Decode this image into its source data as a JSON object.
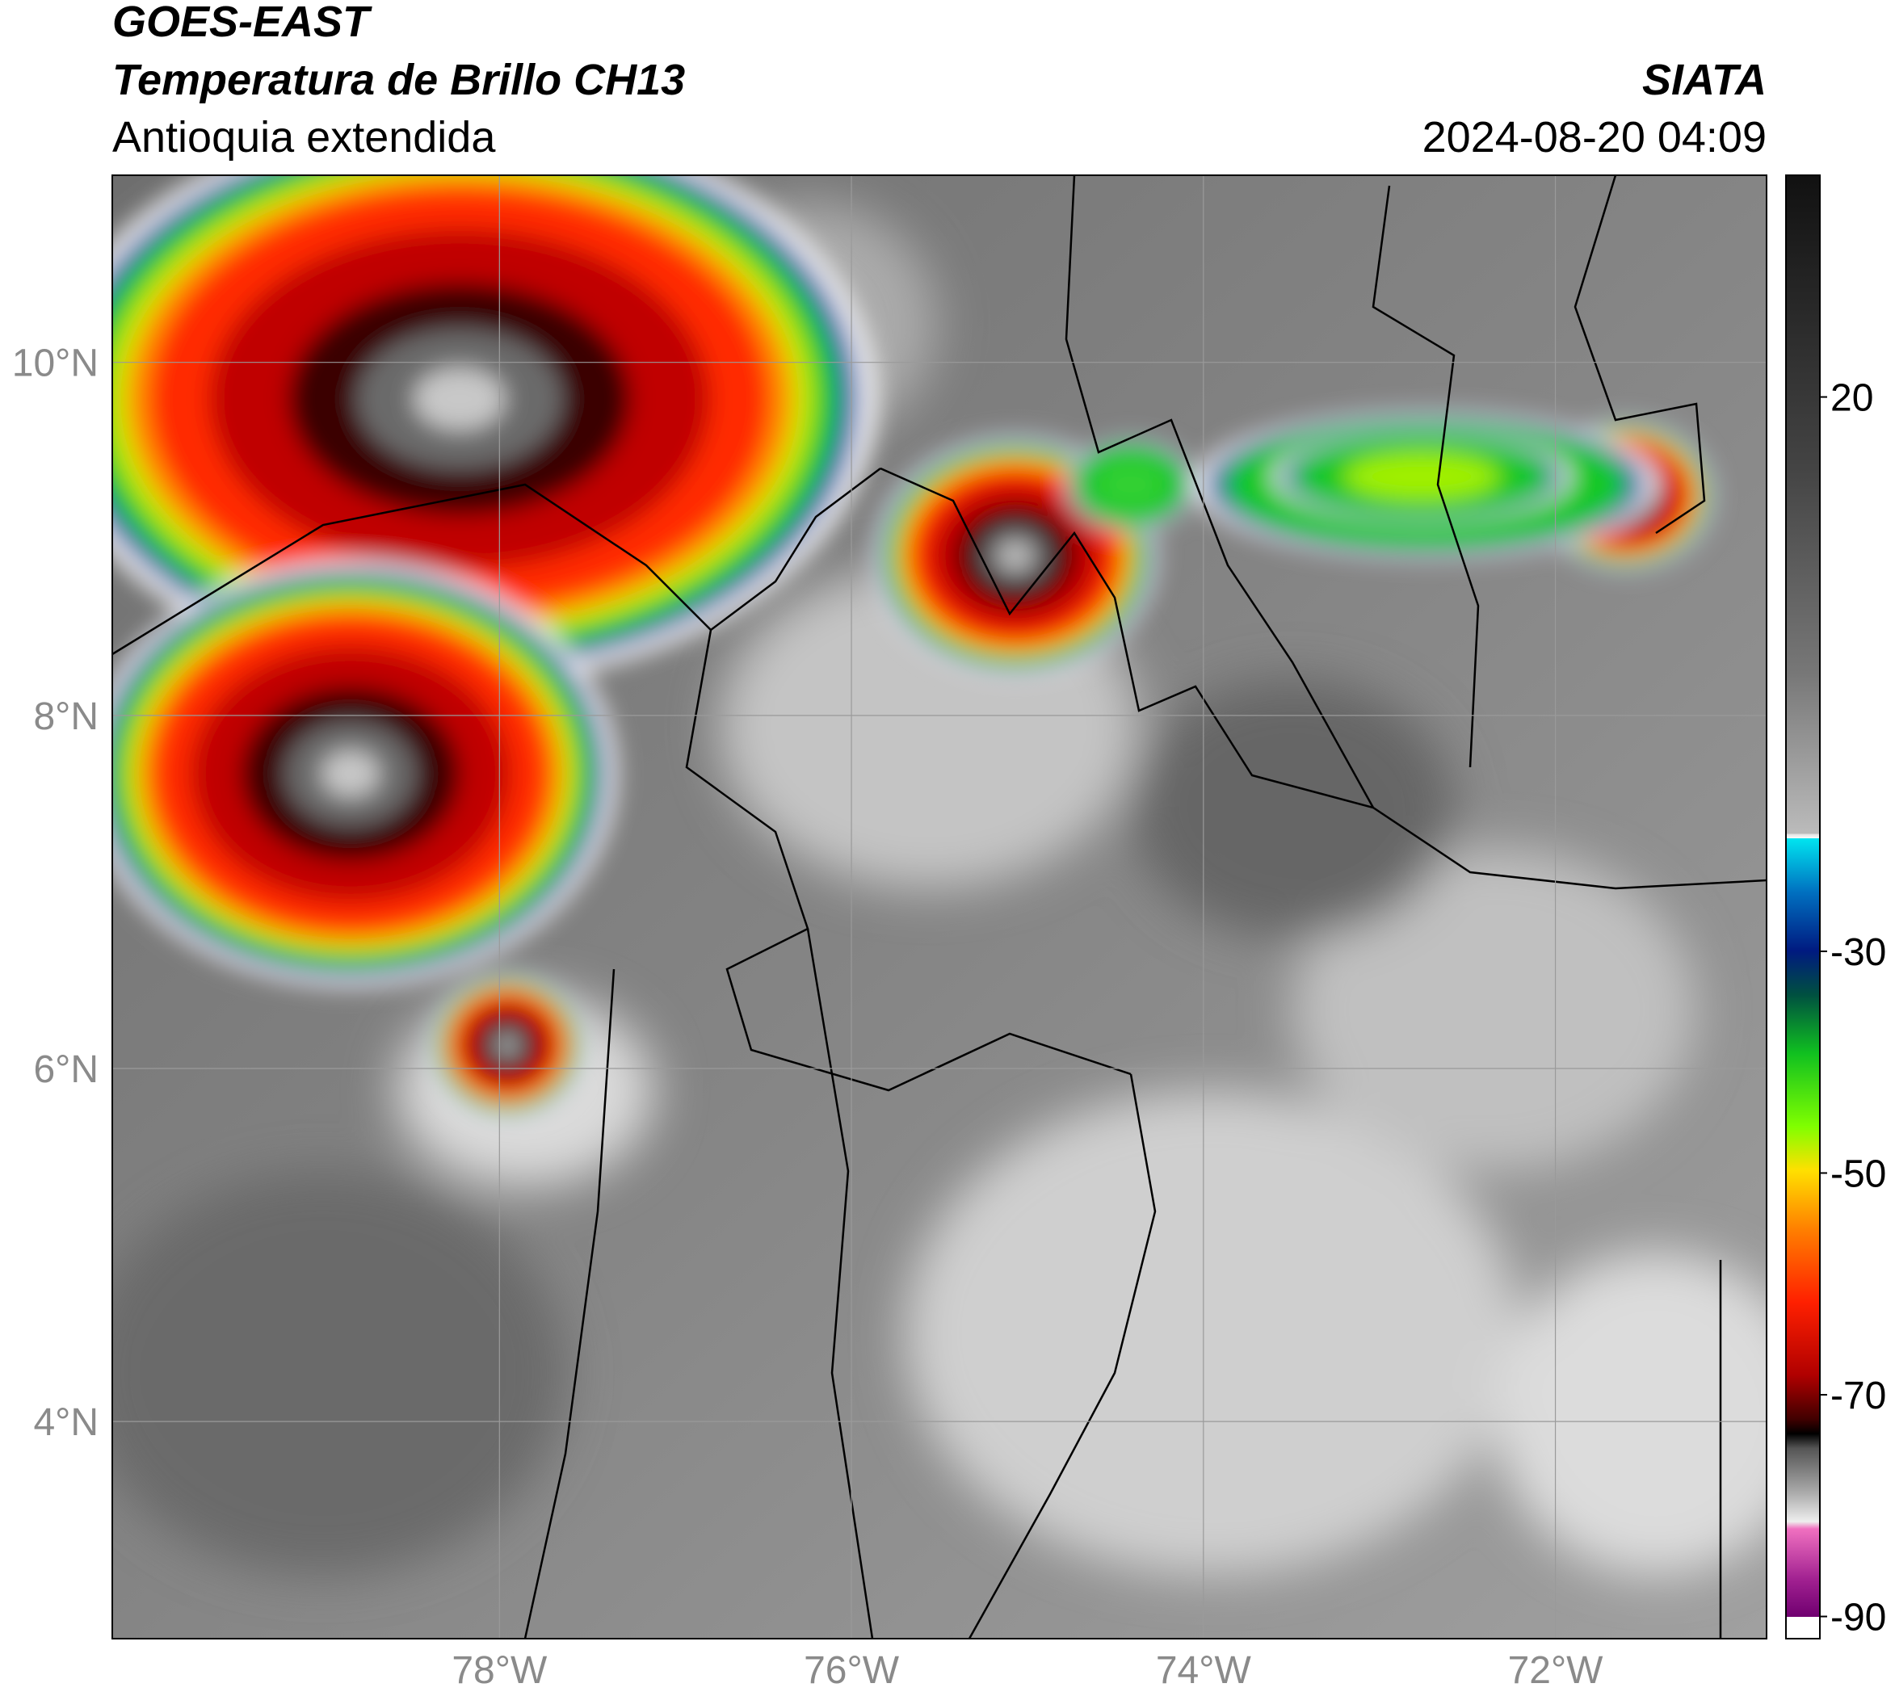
{
  "header": {
    "satellite": "GOES-EAST",
    "product": "Temperatura de Brillo CH13",
    "region": "Antioquia extendida",
    "agency": "SIATA",
    "timestamp": "2024-08-20 04:09"
  },
  "map": {
    "xlim": [
      -80.2,
      -70.8
    ],
    "ylim": [
      2.77,
      11.06
    ],
    "grid": true,
    "xticks": [
      {
        "value": -78,
        "label": "78°W"
      },
      {
        "value": -76,
        "label": "76°W"
      },
      {
        "value": -74,
        "label": "74°W"
      },
      {
        "value": -72,
        "label": "72°W"
      }
    ],
    "yticks": [
      {
        "value": 10,
        "label": "10°N"
      },
      {
        "value": 8,
        "label": "8°N"
      },
      {
        "value": 6,
        "label": "6°N"
      },
      {
        "value": 4,
        "label": "4°N"
      }
    ]
  },
  "colorbar": {
    "range": [
      -92,
      40
    ],
    "ticks": [
      20,
      -30,
      -50,
      -70,
      -90
    ]
  }
}
